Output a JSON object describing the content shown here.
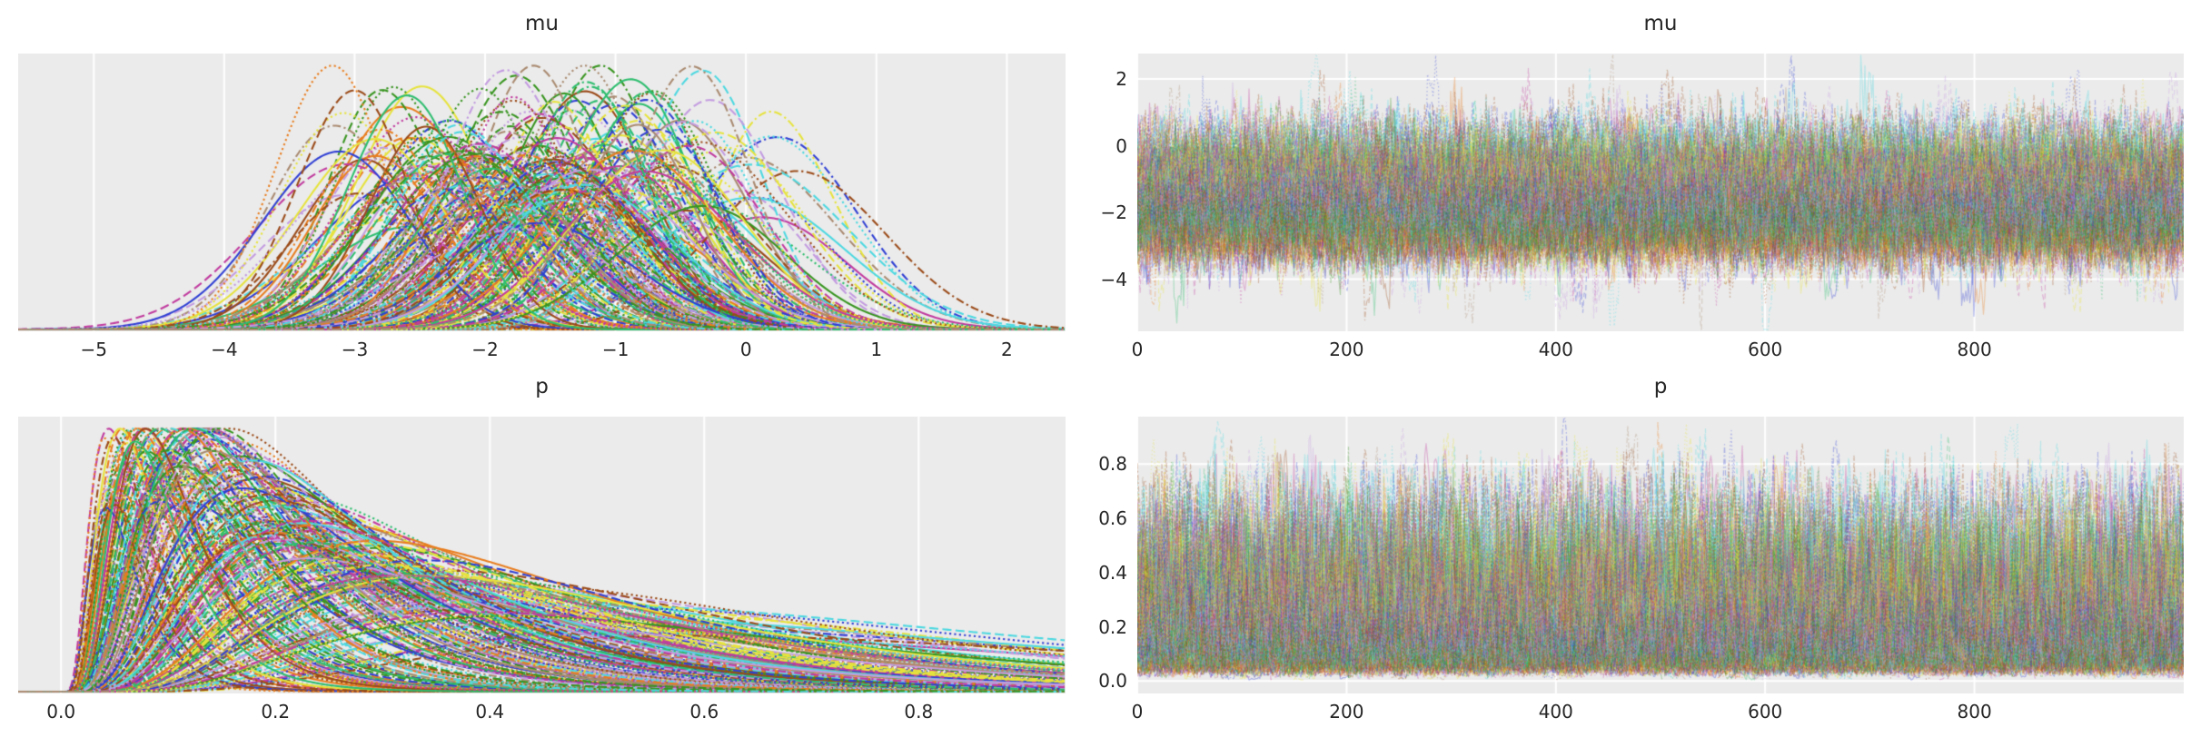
{
  "figure": {
    "background_color": "#ffffff",
    "panel_background_color": "#ebebeb",
    "grid_color": "#ffffff",
    "text_color": "#262626",
    "tick_font_size": 20,
    "title_font_size": 23,
    "palette": [
      "#2f3fd3",
      "#e87d1e",
      "#9a4a18",
      "#4cd8e0",
      "#37941f",
      "#e6e33c",
      "#c03a9e",
      "#c39be0",
      "#2dbd6e",
      "#a98a70"
    ],
    "line_styles": [
      "solid",
      "dashed",
      "dotted",
      "dashdot"
    ],
    "n_chains": 240,
    "seed": 1337,
    "chains_summary": {
      "mu_center_range": [
        -3.3,
        0.52
      ],
      "mu_sigma_range": [
        0.42,
        0.77
      ],
      "p_equals_logistic_of_mu": true
    }
  },
  "chart_data": [
    {
      "id": "mu-kde",
      "kind": "kde",
      "type": "line",
      "title": "mu",
      "variable": "mu",
      "xlabel": "",
      "ylabel": "",
      "xlim": [
        -5.58,
        2.45
      ],
      "xticks": [
        -5,
        -4,
        -3,
        -2,
        -1,
        0,
        1,
        2
      ],
      "xtick_labels": [
        "−5",
        "−4",
        "−3",
        "−2",
        "−1",
        "0",
        "1",
        "2"
      ],
      "yticks": [],
      "ytick_labels": [],
      "grid": "vertical",
      "support": [
        -5.2,
        2.35
      ],
      "peak_location_range": [
        -3.2,
        0.45
      ],
      "n_lines": 240,
      "line_width": 2.1,
      "line_alpha": 1.0,
      "transform": "identity",
      "description": "Overlaid per-chain kernel density estimates of posterior samples of mu; bell-shaped curves with centers spread between −3.3 and 0.5, tails reaching −5.2 and 2.35."
    },
    {
      "id": "mu-trace",
      "kind": "trace",
      "type": "line",
      "title": "mu",
      "variable": "mu",
      "xlabel": "",
      "ylabel": "",
      "xlim": [
        0,
        1000
      ],
      "xticks": [
        0,
        200,
        400,
        600,
        800
      ],
      "xtick_labels": [
        "0",
        "200",
        "400",
        "600",
        "800"
      ],
      "ylim": [
        -5.56,
        2.76
      ],
      "yticks": [
        2,
        0,
        -2,
        -4
      ],
      "ytick_labels": [
        "2",
        "0",
        "−2",
        "−4"
      ],
      "grid": "both",
      "dense_band": [
        -4.6,
        1.25
      ],
      "spike_range": [
        -5.3,
        2.4
      ],
      "n_lines": 240,
      "line_width": 1.25,
      "line_alpha": 0.32,
      "transform": "identity",
      "description": "MCMC sampling traces of mu over ~1000 draws for all chains; stationary noisy band between about −4.6 and 1.25 with occasional spikes above 2."
    },
    {
      "id": "p-kde",
      "kind": "kde",
      "type": "line",
      "title": "p",
      "variable": "p",
      "xlabel": "",
      "ylabel": "",
      "xlim": [
        -0.04,
        0.937
      ],
      "xticks": [
        0.0,
        0.2,
        0.4,
        0.6,
        0.8
      ],
      "xtick_labels": [
        "0.0",
        "0.2",
        "0.4",
        "0.6",
        "0.8"
      ],
      "yticks": [],
      "ytick_labels": [],
      "grid": "vertical",
      "support": [
        0.005,
        0.92
      ],
      "peak_location_range": [
        0.035,
        0.6
      ],
      "n_lines": 240,
      "line_width": 2.1,
      "line_alpha": 1.0,
      "transform": "logistic",
      "description": "Overlaid per-chain kernel density estimates of p; strongly right-skewed curves with modes between about 0.03 and 0.3 and long tails extending to about 0.9. Tallest peaks near p = 0.05."
    },
    {
      "id": "p-trace",
      "kind": "trace",
      "type": "line",
      "title": "p",
      "variable": "p",
      "xlabel": "",
      "ylabel": "",
      "xlim": [
        0,
        1000
      ],
      "xticks": [
        0,
        200,
        400,
        600,
        800
      ],
      "xtick_labels": [
        "0",
        "200",
        "400",
        "600",
        "800"
      ],
      "ylim": [
        -0.046,
        0.975
      ],
      "yticks": [
        0.8,
        0.6,
        0.4,
        0.2,
        0.0
      ],
      "ytick_labels": [
        "0.8",
        "0.6",
        "0.4",
        "0.2",
        "0.0"
      ],
      "grid": "both",
      "dense_band": [
        0.0,
        0.75
      ],
      "spike_range": [
        0.0,
        0.92
      ],
      "n_lines": 240,
      "line_width": 1.25,
      "line_alpha": 0.32,
      "transform": "logistic",
      "description": "MCMC sampling traces of p over ~1000 draws for all chains; values bounded in (0,1), dense band from 0 to about 0.75 with spikes near 0.9."
    }
  ]
}
